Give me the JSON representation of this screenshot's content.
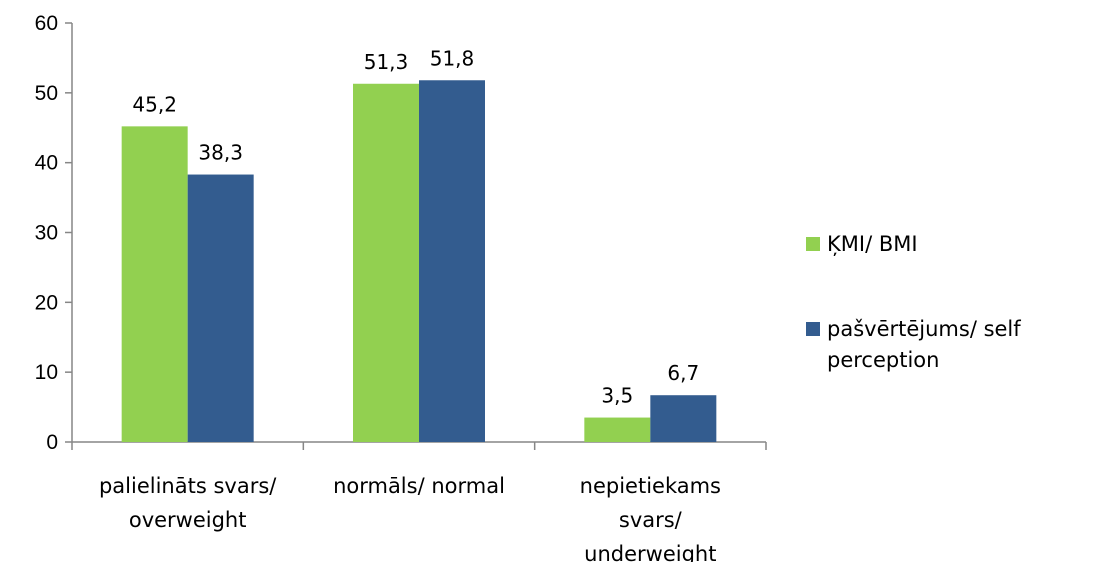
{
  "chart_data": {
    "type": "bar",
    "categories": [
      [
        "palielināts svars/",
        "overweight"
      ],
      [
        "normāls/ normal"
      ],
      [
        "nepietiekams",
        "svars/",
        "underweight"
      ]
    ],
    "series": [
      {
        "name": "ĶMI/ BMI",
        "color": "#92D050",
        "values": [
          45.2,
          51.3,
          3.5
        ],
        "labels": [
          "45,2",
          "51,3",
          "3,5"
        ]
      },
      {
        "name_lines": [
          "pašvērtējums/ self",
          "perception"
        ],
        "color": "#335C8F",
        "values": [
          38.3,
          51.8,
          6.7
        ],
        "labels": [
          "38,3",
          "51,8",
          "6,7"
        ]
      }
    ],
    "ylim": [
      0,
      60
    ],
    "yticks": [
      0,
      10,
      20,
      30,
      40,
      50,
      60
    ],
    "grid": false,
    "legend": "right"
  }
}
